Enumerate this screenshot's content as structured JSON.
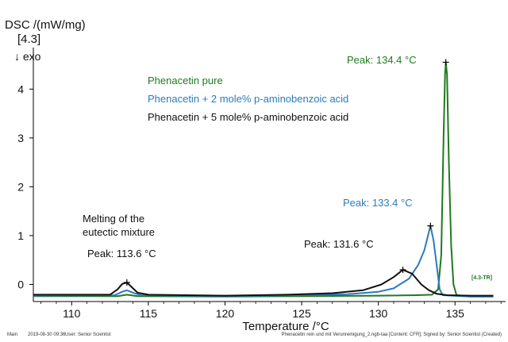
{
  "chart_data": {
    "type": "line",
    "ylabel": "DSC /(mW/mg)",
    "ylabel_tag": "[4.3]",
    "exo_label": "↓ exo",
    "xlabel": "Temperature /°C",
    "xlim": [
      107.5,
      138.3
    ],
    "ylim": [
      -0.35,
      4.85
    ],
    "x_ticks": [
      110,
      115,
      120,
      125,
      130,
      135
    ],
    "y_ticks": [
      0,
      1,
      2,
      3,
      4
    ],
    "grid": false,
    "legend_position": "top-center",
    "series": [
      {
        "name": "Phenacetin pure",
        "color": "#1f7a1f",
        "points": [
          [
            107.5,
            -0.24
          ],
          [
            113.0,
            -0.24
          ],
          [
            113.6,
            -0.21
          ],
          [
            114.3,
            -0.24
          ],
          [
            120.0,
            -0.25
          ],
          [
            125.0,
            -0.24
          ],
          [
            130.0,
            -0.23
          ],
          [
            132.5,
            -0.22
          ],
          [
            133.5,
            -0.21
          ],
          [
            133.9,
            -0.1
          ],
          [
            134.1,
            0.6
          ],
          [
            134.25,
            3.0
          ],
          [
            134.35,
            4.3
          ],
          [
            134.4,
            4.55
          ],
          [
            134.48,
            4.3
          ],
          [
            134.6,
            2.5
          ],
          [
            134.75,
            0.8
          ],
          [
            134.9,
            0.0
          ],
          [
            135.1,
            -0.22
          ],
          [
            136.0,
            -0.25
          ],
          [
            137.5,
            -0.25
          ]
        ]
      },
      {
        "name": "Phenacetin + 2 mole% p-aminobenzoic acid",
        "color": "#2a7bbf",
        "points": [
          [
            107.5,
            -0.23
          ],
          [
            112.8,
            -0.22
          ],
          [
            113.3,
            -0.15
          ],
          [
            113.6,
            -0.12
          ],
          [
            114.0,
            -0.17
          ],
          [
            114.5,
            -0.22
          ],
          [
            120.0,
            -0.24
          ],
          [
            125.0,
            -0.22
          ],
          [
            128.0,
            -0.2
          ],
          [
            130.0,
            -0.15
          ],
          [
            131.0,
            -0.08
          ],
          [
            132.0,
            0.12
          ],
          [
            132.6,
            0.4
          ],
          [
            133.0,
            0.7
          ],
          [
            133.4,
            1.2
          ],
          [
            133.6,
            0.9
          ],
          [
            133.8,
            0.4
          ],
          [
            134.0,
            -0.1
          ],
          [
            134.2,
            -0.22
          ],
          [
            136.0,
            -0.25
          ],
          [
            137.5,
            -0.25
          ]
        ]
      },
      {
        "name": "Phenacetin + 5 mole% p-aminobenzoic acid",
        "color": "#111111",
        "points": [
          [
            107.5,
            -0.21
          ],
          [
            112.5,
            -0.21
          ],
          [
            113.0,
            -0.1
          ],
          [
            113.3,
            0.01
          ],
          [
            113.6,
            0.04
          ],
          [
            113.9,
            -0.05
          ],
          [
            114.3,
            -0.17
          ],
          [
            115.0,
            -0.21
          ],
          [
            120.0,
            -0.23
          ],
          [
            124.0,
            -0.21
          ],
          [
            127.0,
            -0.18
          ],
          [
            129.0,
            -0.12
          ],
          [
            130.2,
            0.0
          ],
          [
            131.0,
            0.15
          ],
          [
            131.6,
            0.3
          ],
          [
            132.2,
            0.22
          ],
          [
            132.8,
            0.0
          ],
          [
            133.3,
            -0.12
          ],
          [
            133.8,
            -0.19
          ],
          [
            134.5,
            -0.22
          ],
          [
            136.0,
            -0.23
          ],
          [
            137.5,
            -0.23
          ]
        ]
      }
    ],
    "annotations": [
      {
        "text": "Peak: 134.4 °C",
        "x": 134.4,
        "y": 4.55,
        "color": "#1f7a1f"
      },
      {
        "text": "Peak: 133.4 °C",
        "x": 133.4,
        "y": 1.2,
        "color": "#2a7bbf"
      },
      {
        "text": "Peak: 131.6 °C",
        "x": 131.6,
        "y": 0.3,
        "color": "#111111"
      },
      {
        "text": "Peak: 113.6 °C",
        "x": 113.6,
        "y": 0.04,
        "color": "#111111"
      }
    ],
    "note_lines": [
      "Melting of the",
      "eutectic mixture"
    ],
    "curve_tag": "[4.3-TR]"
  },
  "footer": {
    "left_label": "Main",
    "datetime": "2019-08-30 09:36",
    "user": "User: Senior Scientist",
    "right_text": "Phenacetin rein und mit Verunreinigung_2.ngb-taa [Content: CFR]; Signed by: Senior Scientist (Created)"
  }
}
